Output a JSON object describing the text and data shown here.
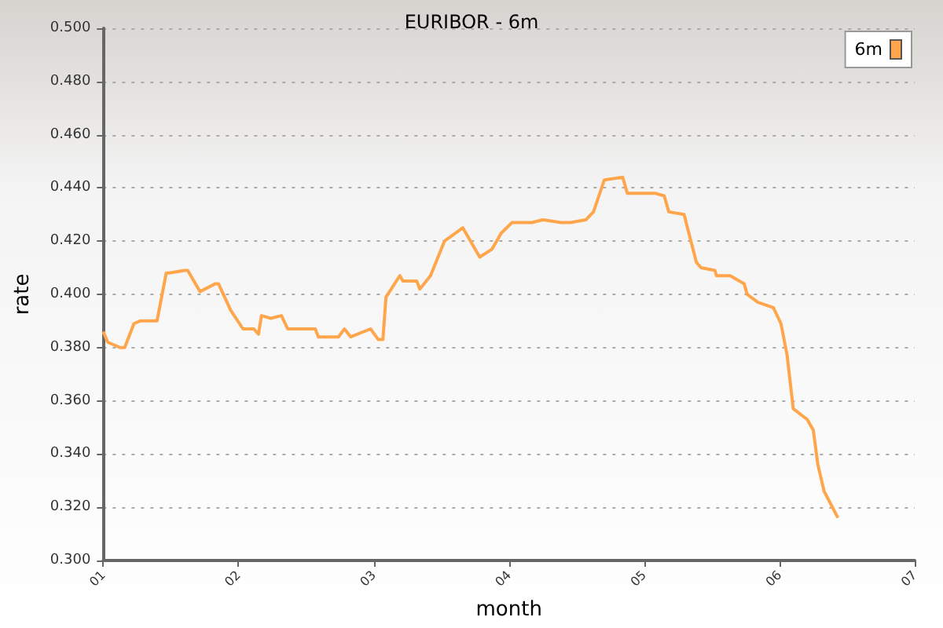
{
  "chart_data": {
    "type": "line",
    "title": "EURIBOR - 6m",
    "xlabel": "month",
    "ylabel": "rate",
    "xlim": [
      1,
      7
    ],
    "xticks": [
      {
        "value": 1,
        "label": "01"
      },
      {
        "value": 2,
        "label": "02"
      },
      {
        "value": 3,
        "label": "03"
      },
      {
        "value": 4,
        "label": "04"
      },
      {
        "value": 5,
        "label": "05"
      },
      {
        "value": 6,
        "label": "06"
      },
      {
        "value": 7,
        "label": "07"
      }
    ],
    "ylim": [
      0.3,
      0.5
    ],
    "yticks": [
      {
        "value": 0.3,
        "label": "0.300"
      },
      {
        "value": 0.32,
        "label": "0.320"
      },
      {
        "value": 0.34,
        "label": "0.340"
      },
      {
        "value": 0.36,
        "label": "0.360"
      },
      {
        "value": 0.38,
        "label": "0.380"
      },
      {
        "value": 0.4,
        "label": "0.400"
      },
      {
        "value": 0.42,
        "label": "0.420"
      },
      {
        "value": 0.44,
        "label": "0.440"
      },
      {
        "value": 0.46,
        "label": "0.460"
      },
      {
        "value": 0.48,
        "label": "0.480"
      },
      {
        "value": 0.5,
        "label": "0.500"
      }
    ],
    "grid": "y",
    "legend": "top right",
    "marker": "none",
    "line_style": "solid",
    "series": [
      {
        "name": "6m",
        "color": "#ffa64d",
        "x": [
          1.0,
          1.034,
          1.125,
          1.159,
          1.227,
          1.273,
          1.352,
          1.398,
          1.466,
          1.489,
          1.602,
          1.625,
          1.716,
          1.83,
          1.852,
          1.943,
          2.034,
          2.114,
          2.148,
          2.17,
          2.239,
          2.318,
          2.364,
          2.568,
          2.591,
          2.739,
          2.784,
          2.83,
          2.977,
          3.034,
          3.068,
          3.091,
          3.193,
          3.216,
          3.318,
          3.341,
          3.42,
          3.523,
          3.659,
          3.784,
          3.875,
          3.943,
          4.023,
          4.136,
          4.17,
          4.25,
          4.386,
          4.455,
          4.568,
          4.625,
          4.705,
          4.841,
          4.875,
          5.08,
          5.148,
          5.182,
          5.295,
          5.33,
          5.386,
          5.42,
          5.523,
          5.534,
          5.636,
          5.739,
          5.761,
          5.841,
          5.955,
          6.011,
          6.057,
          6.102,
          6.205,
          6.25,
          6.284,
          6.33,
          6.432
        ],
        "values": [
          0.386,
          0.382,
          0.38,
          0.38,
          0.389,
          0.39,
          0.39,
          0.39,
          0.408,
          0.408,
          0.409,
          0.409,
          0.401,
          0.404,
          0.404,
          0.394,
          0.387,
          0.387,
          0.385,
          0.392,
          0.391,
          0.392,
          0.387,
          0.387,
          0.384,
          0.384,
          0.387,
          0.384,
          0.387,
          0.383,
          0.383,
          0.399,
          0.407,
          0.405,
          0.405,
          0.402,
          0.407,
          0.42,
          0.425,
          0.414,
          0.417,
          0.423,
          0.427,
          0.427,
          0.427,
          0.428,
          0.427,
          0.427,
          0.428,
          0.431,
          0.443,
          0.444,
          0.438,
          0.438,
          0.437,
          0.431,
          0.43,
          0.423,
          0.412,
          0.41,
          0.409,
          0.407,
          0.407,
          0.404,
          0.4,
          0.397,
          0.395,
          0.389,
          0.377,
          0.357,
          0.353,
          0.349,
          0.336,
          0.326,
          0.316
        ]
      }
    ]
  }
}
